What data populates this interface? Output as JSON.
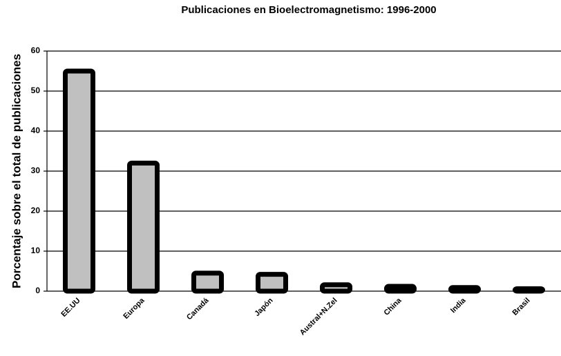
{
  "chart_data": {
    "type": "bar",
    "title": "Publicaciones en Bioelectromagnetismo: 1996-2000",
    "y_label": "Porcentaje sobre el total de publicaciones",
    "categories": [
      "EE.UU",
      "Europa",
      "Canadá",
      "Japón",
      "Austral+N.Zel",
      "China",
      "India",
      "Brasil"
    ],
    "values": [
      55,
      32,
      4.5,
      4.2,
      1.6,
      1.2,
      0.9,
      0.6
    ],
    "color": "#c0c0c0",
    "ylim": [
      0,
      60
    ],
    "yticks": [
      0,
      10,
      20,
      30,
      40,
      50,
      60
    ],
    "grid": true
  }
}
